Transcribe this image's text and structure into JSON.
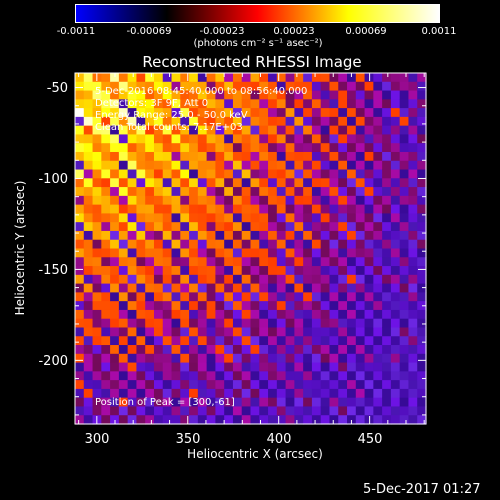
{
  "colorbar": {
    "ticks": [
      "-0.0011",
      "-0.00069",
      "-0.00023",
      "0.00023",
      "0.00069",
      "0.0011"
    ],
    "unit": "(photons cm⁻² s⁻¹ asec⁻²)"
  },
  "chart_data": {
    "type": "heatmap",
    "title": "Reconstructed RHESSI Image",
    "xlabel": "Heliocentric X (arcsec)",
    "ylabel": "Heliocentric Y (arcsec)",
    "xlim": [
      288,
      481
    ],
    "ylim": [
      -235,
      -42
    ],
    "xticks": [
      "300",
      "350",
      "400",
      "450"
    ],
    "yticks": [
      "-50",
      "-100",
      "-150",
      "-200"
    ],
    "xtick_values": [
      300,
      350,
      400,
      450
    ],
    "ytick_values": [
      -50,
      -100,
      -150,
      -200
    ],
    "color_range": [
      -0.0011,
      0.0011
    ],
    "peak": [
      300,
      -61
    ],
    "colormap": [
      "#0000ff",
      "#000000",
      "#ff0000",
      "#ffff00",
      "#ffffff"
    ]
  },
  "annotations": {
    "line1": "5-Dec-2016 08:45:40.000 to 08:56:40.000",
    "line2": "Detectors: 3F 9F, Att 0",
    "line3": "Energy Range: 25.0 - 50.0 keV",
    "line4": "Clean     Total counts: 7.17E+03",
    "peak": "Position of Peak = [300,-61]"
  },
  "timestamp": "5-Dec-2017 01:27"
}
